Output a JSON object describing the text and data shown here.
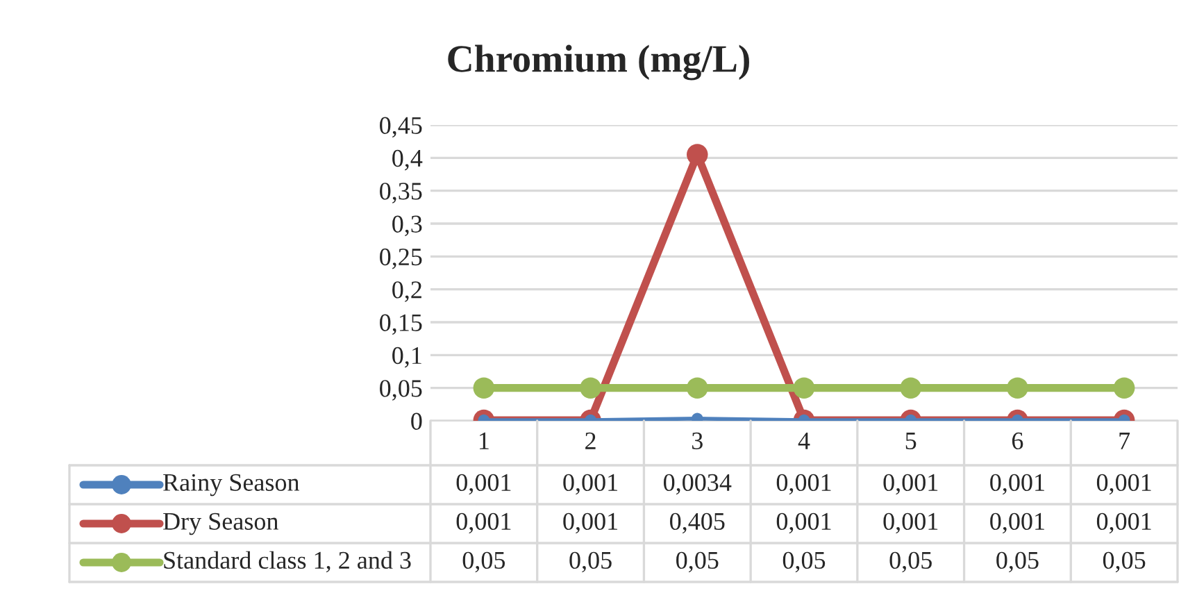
{
  "chart_data": {
    "type": "line",
    "title": "Chromium (mg/L)",
    "categories": [
      "1",
      "2",
      "3",
      "4",
      "5",
      "6",
      "7"
    ],
    "series": [
      {
        "name": "Rainy Season",
        "color": "#4f81bd",
        "values": [
          0.001,
          0.001,
          0.0034,
          0.001,
          0.001,
          0.001,
          0.001
        ],
        "value_labels": [
          "0,001",
          "0,001",
          "0,0034",
          "0,001",
          "0,001",
          "0,001",
          "0,001"
        ]
      },
      {
        "name": "Dry Season",
        "color": "#c0504d",
        "values": [
          0.001,
          0.001,
          0.405,
          0.001,
          0.001,
          0.001,
          0.001
        ],
        "value_labels": [
          "0,001",
          "0,001",
          "0,405",
          "0,001",
          "0,001",
          "0,001",
          "0,001"
        ]
      },
      {
        "name": "Standard class 1, 2 and 3",
        "color": "#9bbb59",
        "values": [
          0.05,
          0.05,
          0.05,
          0.05,
          0.05,
          0.05,
          0.05
        ],
        "value_labels": [
          "0,05",
          "0,05",
          "0,05",
          "0,05",
          "0,05",
          "0,05",
          "0,05"
        ]
      }
    ],
    "ylim": [
      0,
      0.45
    ],
    "yticks": [
      0,
      {
        "value": 0.05,
        "label": "0,05"
      },
      {
        "value": 0.1,
        "label": "0,1"
      },
      {
        "value": 0.15,
        "label": "0,15"
      },
      {
        "value": 0.2,
        "label": "0,2"
      },
      {
        "value": 0.25,
        "label": "0,25"
      },
      {
        "value": 0.3,
        "label": "0,3"
      },
      {
        "value": 0.35,
        "label": "0,35"
      },
      {
        "value": 0.4,
        "label": "0,4"
      },
      {
        "value": 0.45,
        "label": "0,45"
      }
    ],
    "grid": "y",
    "legend": "bottom",
    "marker": "circle",
    "line_style": "solid"
  }
}
